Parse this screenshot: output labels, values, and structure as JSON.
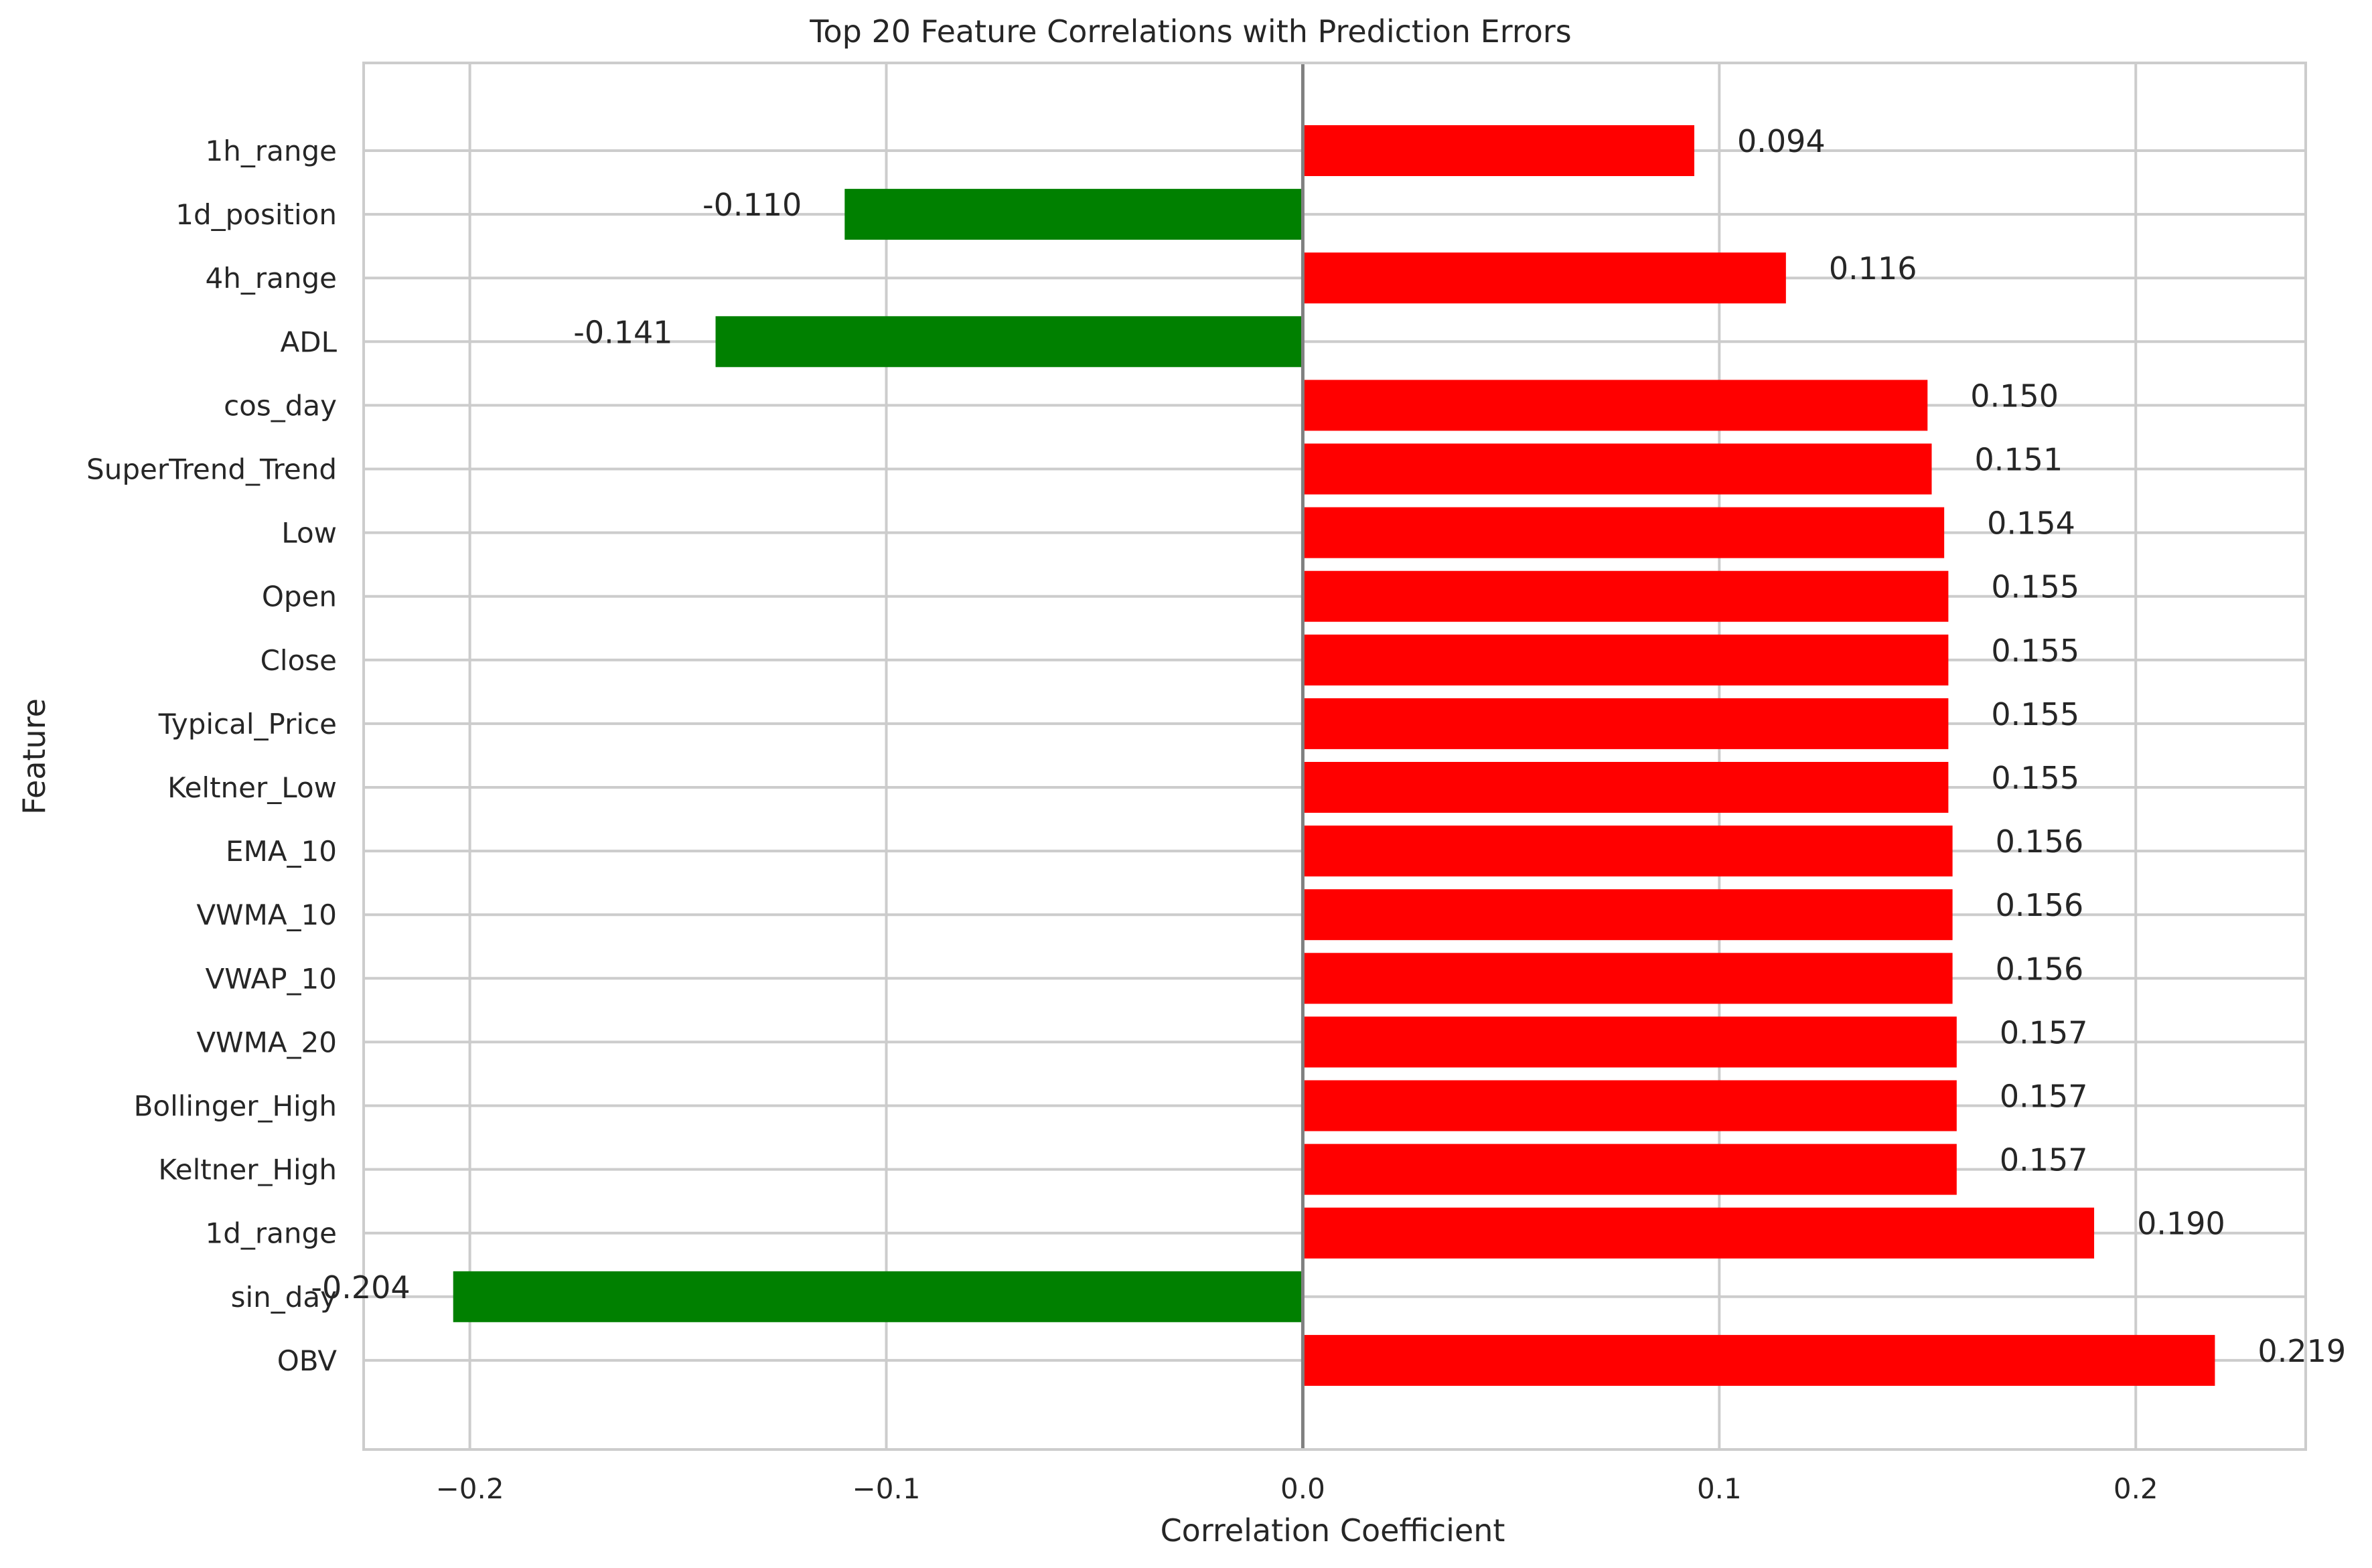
{
  "chart_data": {
    "type": "bar",
    "orientation": "horizontal",
    "title": "Top 20 Feature Correlations with Prediction Errors",
    "xlabel": "Correlation Coefficient",
    "ylabel": "Feature",
    "xlim": [
      -0.2255,
      0.2408
    ],
    "xticks": [
      -0.2,
      -0.1,
      0.0,
      0.1,
      0.2
    ],
    "xtick_labels": [
      "−0.2",
      "−0.1",
      "0.0",
      "0.1",
      "0.2"
    ],
    "grid": true,
    "zero_line": true,
    "colors": {
      "positive": "#ff0000",
      "negative": "#008000",
      "grid": "#cccccc",
      "zero_line": "#808080",
      "frame": "#cccccc"
    },
    "bars": [
      {
        "feature": "1h_range",
        "value": 0.094,
        "label": "0.094"
      },
      {
        "feature": "1d_position",
        "value": -0.11,
        "label": "-0.110"
      },
      {
        "feature": "4h_range",
        "value": 0.116,
        "label": "0.116"
      },
      {
        "feature": "ADL",
        "value": -0.141,
        "label": "-0.141"
      },
      {
        "feature": "cos_day",
        "value": 0.15,
        "label": "0.150"
      },
      {
        "feature": "SuperTrend_Trend",
        "value": 0.151,
        "label": "0.151"
      },
      {
        "feature": "Low",
        "value": 0.154,
        "label": "0.154"
      },
      {
        "feature": "Open",
        "value": 0.155,
        "label": "0.155"
      },
      {
        "feature": "Close",
        "value": 0.155,
        "label": "0.155"
      },
      {
        "feature": "Typical_Price",
        "value": 0.155,
        "label": "0.155"
      },
      {
        "feature": "Keltner_Low",
        "value": 0.155,
        "label": "0.155"
      },
      {
        "feature": "EMA_10",
        "value": 0.156,
        "label": "0.156"
      },
      {
        "feature": "VWMA_10",
        "value": 0.156,
        "label": "0.156"
      },
      {
        "feature": "VWAP_10",
        "value": 0.156,
        "label": "0.156"
      },
      {
        "feature": "VWMA_20",
        "value": 0.157,
        "label": "0.157"
      },
      {
        "feature": "Bollinger_High",
        "value": 0.157,
        "label": "0.157"
      },
      {
        "feature": "Keltner_High",
        "value": 0.157,
        "label": "0.157"
      },
      {
        "feature": "1d_range",
        "value": 0.19,
        "label": "0.190"
      },
      {
        "feature": "sin_day",
        "value": -0.204,
        "label": "-0.204"
      },
      {
        "feature": "OBV",
        "value": 0.219,
        "label": "0.219"
      }
    ]
  }
}
